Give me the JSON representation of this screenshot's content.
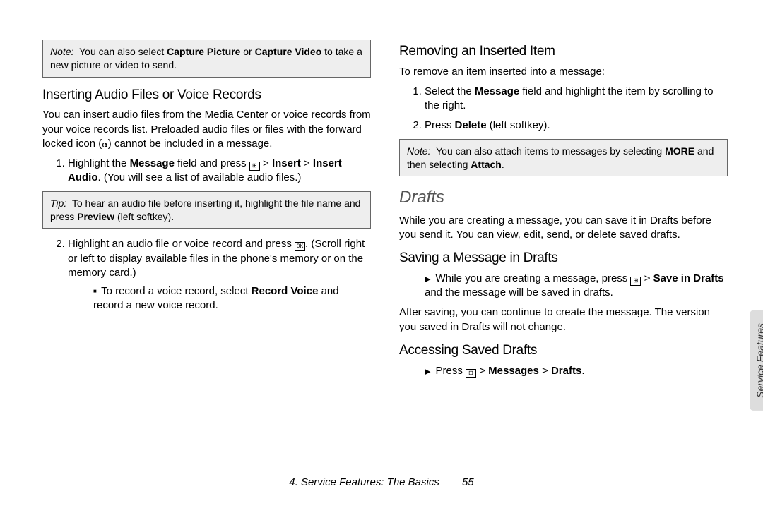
{
  "left": {
    "note1_label": "Note:",
    "note1_text_a": "You can also select ",
    "note1_b1": "Capture Picture",
    "note1_text_b": " or ",
    "note1_b2": "Capture Video",
    "note1_text_c": " to take a new picture or video to send.",
    "h_insert_audio": "Inserting Audio Files or Voice Records",
    "p_insert_audio": "You can insert audio files from the Media Center or voice records from your voice records list. Preloaded audio files or files with the forward locked icon (",
    "p_insert_audio_end": ") cannot be included in a message.",
    "ol1_li1_a": "Highlight the ",
    "ol1_li1_b1": "Message",
    "ol1_li1_b": " field and press ",
    "ol1_li1_c": " > ",
    "ol1_li1_b2": "Insert",
    "ol1_li1_d": " > ",
    "ol1_li1_b3": "Insert Audio",
    "ol1_li1_e": ". (You will see a list of available audio files.)",
    "tip_label": "Tip:",
    "tip_text_a": "To hear an audio file before inserting it, highlight the file name and press ",
    "tip_b": "Preview",
    "tip_text_b": " (left softkey).",
    "ol1_li2_a": "Highlight an audio file or voice record and press ",
    "ol1_li2_b": ". (Scroll right or left to display available files in the phone's memory or on the  memory card.)",
    "sub_li_a": "To record a voice record, select ",
    "sub_li_b": "Record Voice",
    "sub_li_c": " and record a new voice record."
  },
  "right": {
    "h_remove": "Removing an Inserted Item",
    "p_remove": "To remove an item inserted into a message:",
    "ol2_li1_a": "Select the ",
    "ol2_li1_b": "Message",
    "ol2_li1_c": " field and highlight the item by scrolling to the right.",
    "ol2_li2_a": "Press ",
    "ol2_li2_b": "Delete",
    "ol2_li2_c": " (left softkey).",
    "note2_label": "Note:",
    "note2_a": "You can also attach items to messages by selecting ",
    "note2_b1": "MORE",
    "note2_b": " and then selecting ",
    "note2_b2": "Attach",
    "note2_c": ".",
    "h_drafts": "Drafts",
    "p_drafts": "While you are creating a message, you can save it in Drafts before you send it. You can view, edit, send, or delete saved drafts.",
    "h_saving": "Saving a Message in Drafts",
    "ar1_a": "While you are creating a message, press ",
    "ar1_b": " > ",
    "ar1_bold": "Save in Drafts",
    "ar1_c": " and the message will be saved in drafts.",
    "p_after": "After saving, you can continue to create the message. The version you saved in Drafts will not change.",
    "h_access": "Accessing Saved Drafts",
    "ar2_a": "Press ",
    "ar2_b": " > ",
    "ar2_bold1": "Messages",
    "ar2_c": " > ",
    "ar2_bold2": "Drafts",
    "ar2_d": "."
  },
  "footer": {
    "chapter": "4. Service Features: The Basics",
    "page": "55"
  },
  "sidetab": "Service Features",
  "ok_label": "OK"
}
